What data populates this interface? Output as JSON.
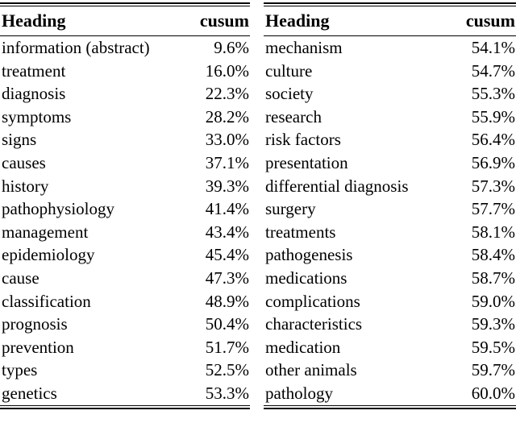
{
  "chart_data": [
    {
      "type": "table",
      "columns": [
        "Heading",
        "cusum"
      ],
      "rows": [
        [
          "information (abstract)",
          "9.6%"
        ],
        [
          "treatment",
          "16.0%"
        ],
        [
          "diagnosis",
          "22.3%"
        ],
        [
          "symptoms",
          "28.2%"
        ],
        [
          "signs",
          "33.0%"
        ],
        [
          "causes",
          "37.1%"
        ],
        [
          "history",
          "39.3%"
        ],
        [
          "pathophysiology",
          "41.4%"
        ],
        [
          "management",
          "43.4%"
        ],
        [
          "epidemiology",
          "45.4%"
        ],
        [
          "cause",
          "47.3%"
        ],
        [
          "classification",
          "48.9%"
        ],
        [
          "prognosis",
          "50.4%"
        ],
        [
          "prevention",
          "51.7%"
        ],
        [
          "types",
          "52.5%"
        ],
        [
          "genetics",
          "53.3%"
        ]
      ]
    },
    {
      "type": "table",
      "columns": [
        "Heading",
        "cusum"
      ],
      "rows": [
        [
          "mechanism",
          "54.1%"
        ],
        [
          "culture",
          "54.7%"
        ],
        [
          "society",
          "55.3%"
        ],
        [
          "research",
          "55.9%"
        ],
        [
          "risk factors",
          "56.4%"
        ],
        [
          "presentation",
          "56.9%"
        ],
        [
          "differential diagnosis",
          "57.3%"
        ],
        [
          "surgery",
          "57.7%"
        ],
        [
          "treatments",
          "58.1%"
        ],
        [
          "pathogenesis",
          "58.4%"
        ],
        [
          "medications",
          "58.7%"
        ],
        [
          "complications",
          "59.0%"
        ],
        [
          "characteristics",
          "59.3%"
        ],
        [
          "medication",
          "59.5%"
        ],
        [
          "other animals",
          "59.7%"
        ],
        [
          "pathology",
          "60.0%"
        ]
      ]
    }
  ],
  "style": {
    "text_color": "#000000",
    "background_color": "#ffffff"
  }
}
